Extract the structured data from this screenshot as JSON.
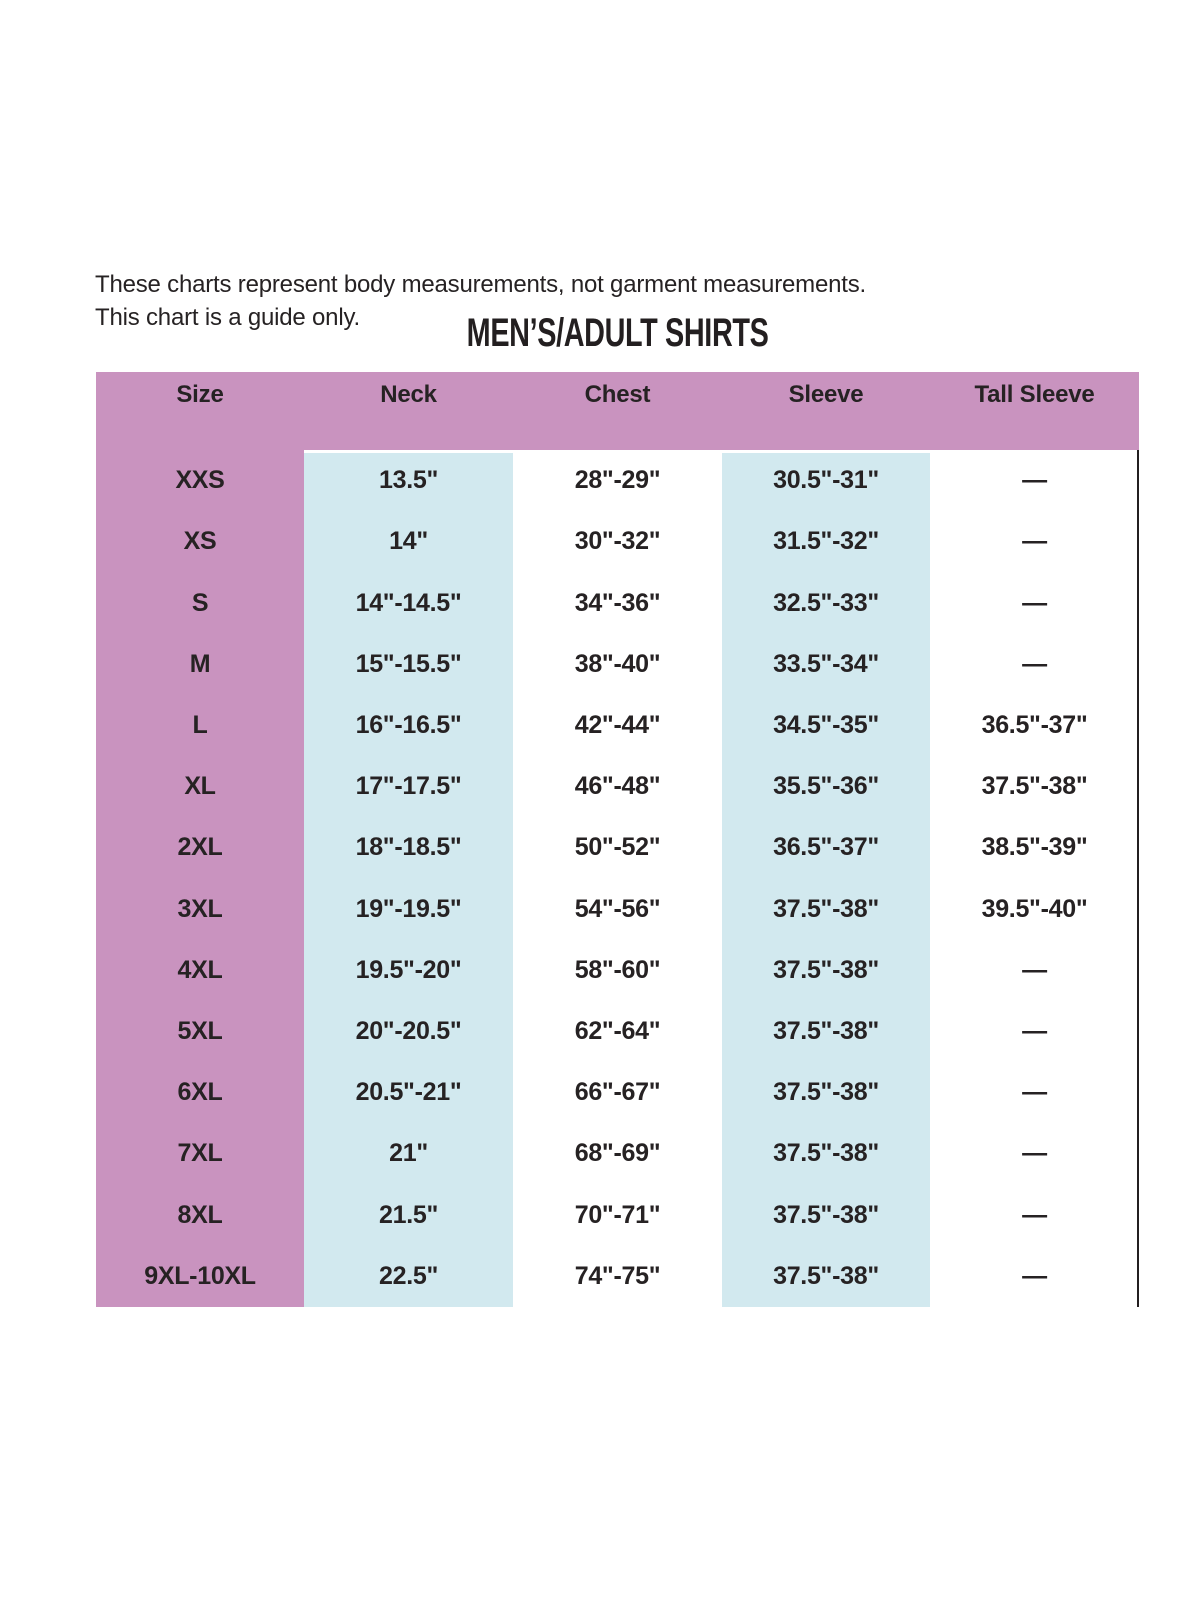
{
  "page": {
    "background": "#ffffff",
    "intro_line1": "These charts represent body measurements, not garment measurements.",
    "intro_line2": "This chart is a guide only.",
    "title": "MEN’S/ADULT SHIRTS"
  },
  "colors": {
    "header_pink": "#c993bf",
    "column_blue": "#d2e9ef",
    "text_dark": "#262223",
    "rule_black": "#231f20"
  },
  "chart_data": {
    "type": "table",
    "title": "MEN’S/ADULT SHIRTS",
    "note": "These charts represent body measurements, not garment measurements. This chart is a guide only.",
    "columns": [
      "Size",
      "Neck",
      "Chest",
      "Sleeve",
      "Tall Sleeve"
    ],
    "highlighted_columns": [
      "Size",
      "Neck",
      "Sleeve"
    ],
    "no_value_symbol": "—",
    "rows": [
      [
        "XXS",
        "13.5\"",
        "28\"-29\"",
        "30.5\"-31\"",
        "—"
      ],
      [
        "XS",
        "14\"",
        "30\"-32\"",
        "31.5\"-32\"",
        "—"
      ],
      [
        "S",
        "14\"-14.5\"",
        "34\"-36\"",
        "32.5\"-33\"",
        "—"
      ],
      [
        "M",
        "15\"-15.5\"",
        "38\"-40\"",
        "33.5\"-34\"",
        "—"
      ],
      [
        "L",
        "16\"-16.5\"",
        "42\"-44\"",
        "34.5\"-35\"",
        "36.5\"-37\""
      ],
      [
        "XL",
        "17\"-17.5\"",
        "46\"-48\"",
        "35.5\"-36\"",
        "37.5\"-38\""
      ],
      [
        "2XL",
        "18\"-18.5\"",
        "50\"-52\"",
        "36.5\"-37\"",
        "38.5\"-39\""
      ],
      [
        "3XL",
        "19\"-19.5\"",
        "54\"-56\"",
        "37.5\"-38\"",
        "39.5\"-40\""
      ],
      [
        "4XL",
        "19.5\"-20\"",
        "58\"-60\"",
        "37.5\"-38\"",
        "—"
      ],
      [
        "5XL",
        "20\"-20.5\"",
        "62\"-64\"",
        "37.5\"-38\"",
        "—"
      ],
      [
        "6XL",
        "20.5\"-21\"",
        "66\"-67\"",
        "37.5\"-38\"",
        "—"
      ],
      [
        "7XL",
        "21\"",
        "68\"-69\"",
        "37.5\"-38\"",
        "—"
      ],
      [
        "8XL",
        "21.5\"",
        "70\"-71\"",
        "37.5\"-38\"",
        "—"
      ],
      [
        "9XL-10XL",
        "22.5\"",
        "74\"-75\"",
        "37.5\"-38\"",
        "—"
      ]
    ]
  }
}
